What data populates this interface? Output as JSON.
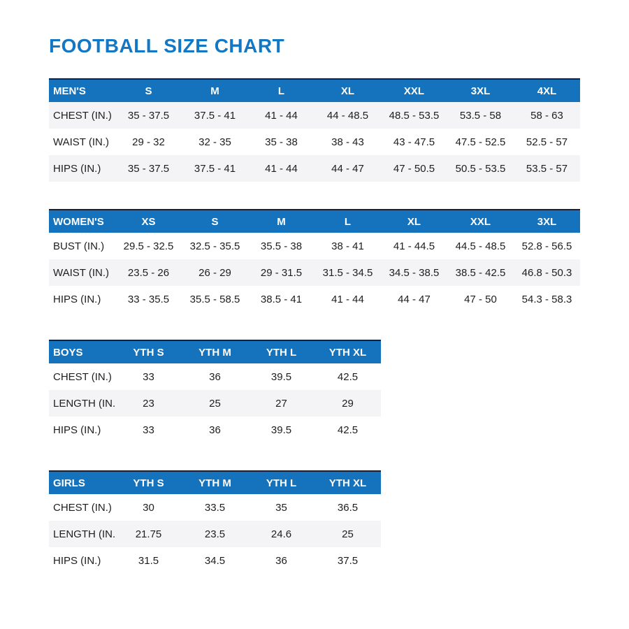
{
  "page": {
    "title": "FOOTBALL SIZE CHART"
  },
  "colors": {
    "accent": "#1573bd",
    "title": "#1377c4",
    "header_text": "#ffffff",
    "header_top_border": "#14213d",
    "row_shaded": "#f4f4f6",
    "text": "#1e1e1e"
  },
  "tables": [
    {
      "id": "mens",
      "size": "wide",
      "columns": [
        "MEN'S",
        "S",
        "M",
        "L",
        "XL",
        "XXL",
        "3XL",
        "4XL"
      ],
      "rows": [
        {
          "label": "CHEST (IN.)",
          "shaded": true,
          "values": [
            "35 - 37.5",
            "37.5 - 41",
            "41 - 44",
            "44 - 48.5",
            "48.5 - 53.5",
            "53.5 - 58",
            "58 - 63"
          ]
        },
        {
          "label": "WAIST (IN.)",
          "shaded": false,
          "values": [
            "29 - 32",
            "32 - 35",
            "35 - 38",
            "38 - 43",
            "43 - 47.5",
            "47.5 - 52.5",
            "52.5 - 57"
          ]
        },
        {
          "label": "HIPS (IN.)",
          "shaded": true,
          "values": [
            "35 - 37.5",
            "37.5 - 41",
            "41 - 44",
            "44 - 47",
            "47 - 50.5",
            "50.5 - 53.5",
            "53.5 - 57"
          ]
        }
      ]
    },
    {
      "id": "womens",
      "size": "wide",
      "columns": [
        "WOMEN'S",
        "XS",
        "S",
        "M",
        "L",
        "XL",
        "XXL",
        "3XL"
      ],
      "rows": [
        {
          "label": "BUST (IN.)",
          "shaded": false,
          "values": [
            "29.5 - 32.5",
            "32.5 - 35.5",
            "35.5 - 38",
            "38 - 41",
            "41 - 44.5",
            "44.5 - 48.5",
            "52.8 - 56.5"
          ]
        },
        {
          "label": "WAIST (IN.)",
          "shaded": true,
          "values": [
            "23.5 - 26",
            "26 - 29",
            "29 - 31.5",
            "31.5 - 34.5",
            "34.5 - 38.5",
            "38.5 - 42.5",
            "46.8 - 50.3"
          ]
        },
        {
          "label": "HIPS (IN.)",
          "shaded": false,
          "values": [
            "33 - 35.5",
            "35.5 - 58.5",
            "38.5 - 41",
            "41 - 44",
            "44 - 47",
            "47 - 50",
            "54.3 - 58.3"
          ]
        }
      ]
    },
    {
      "id": "boys",
      "size": "narrow",
      "columns": [
        "BOYS",
        "YTH S",
        "YTH M",
        "YTH L",
        "YTH XL"
      ],
      "rows": [
        {
          "label": "CHEST (IN.)",
          "shaded": false,
          "values": [
            "33",
            "36",
            "39.5",
            "42.5"
          ]
        },
        {
          "label": "LENGTH (IN.)",
          "shaded": true,
          "values": [
            "23",
            "25",
            "27",
            "29"
          ]
        },
        {
          "label": "HIPS (IN.)",
          "shaded": false,
          "values": [
            "33",
            "36",
            "39.5",
            "42.5"
          ]
        }
      ]
    },
    {
      "id": "girls",
      "size": "narrow",
      "columns": [
        "GIRLS",
        "YTH S",
        "YTH M",
        "YTH L",
        "YTH XL"
      ],
      "rows": [
        {
          "label": "CHEST (IN.)",
          "shaded": false,
          "values": [
            "30",
            "33.5",
            "35",
            "36.5"
          ]
        },
        {
          "label": "LENGTH (IN.)",
          "shaded": true,
          "values": [
            "21.75",
            "23.5",
            "24.6",
            "25"
          ]
        },
        {
          "label": "HIPS (IN.)",
          "shaded": false,
          "values": [
            "31.5",
            "34.5",
            "36",
            "37.5"
          ]
        }
      ]
    }
  ]
}
